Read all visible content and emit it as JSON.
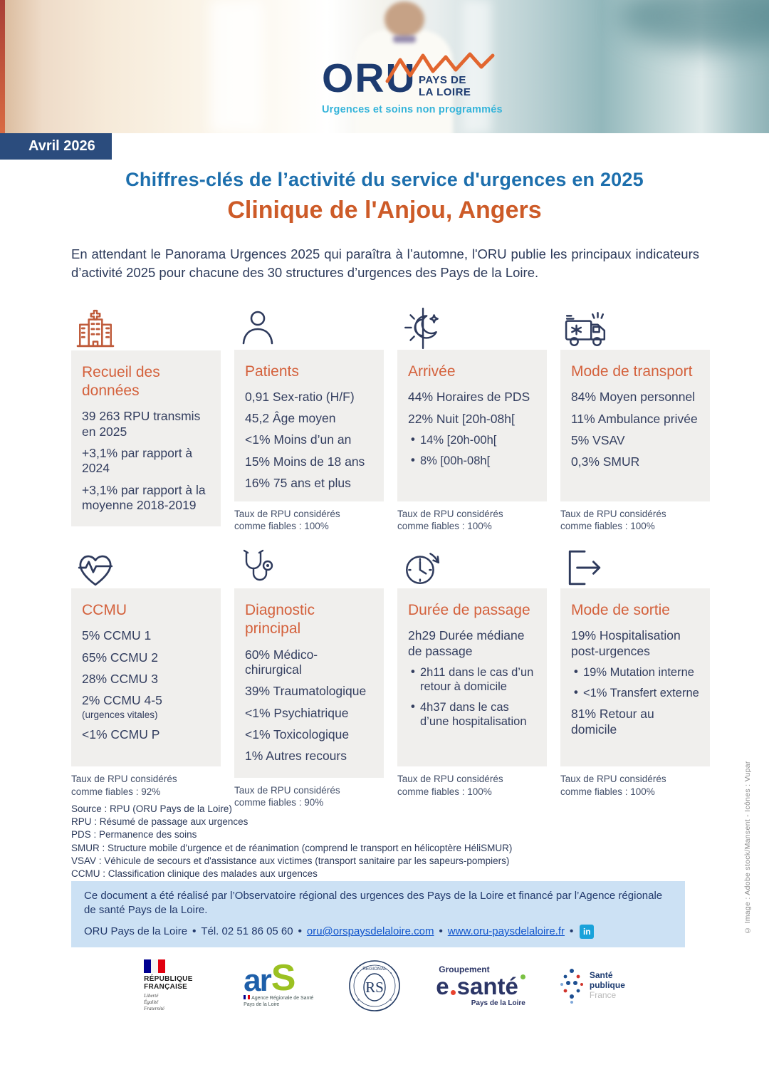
{
  "colors": {
    "navy": "#2e3a5c",
    "title_blue": "#1d6fad",
    "accent_orange": "#d4613c",
    "badge_navy": "#2b4c7d",
    "card_bg": "#f0efed",
    "contact_bg": "#cce1f4",
    "link_blue": "#1155cc",
    "tagline_blue": "#35b4da"
  },
  "logo": {
    "acronym": "ORU",
    "region_line1": "PAYS DE",
    "region_line2": "LA LOIRE",
    "tagline": "Urgences et soins non programmés"
  },
  "header": {
    "badge": "Avril 2026",
    "title": "Chiffres-clés de l’activité du service d'urgences en 2025",
    "subtitle": "Clinique de l'Anjou, Angers",
    "intro": "En attendant le Panorama Urgences 2025 qui paraîtra à l’automne, l'ORU publie les principaux indicateurs d’activité 2025 pour chacune des 30 structures d’urgences des Pays de la Loire."
  },
  "cards": [
    {
      "icon": "hospital-icon",
      "title": "Recueil des données",
      "lines": [
        {
          "text": "39 263 RPU transmis en 2025"
        },
        {
          "text": "+3,1% par rapport à 2024"
        },
        {
          "text": "+3,1% par rapport à la moyenne 2018-2019"
        }
      ],
      "footnote": ""
    },
    {
      "icon": "person-icon",
      "title": "Patients",
      "lines": [
        {
          "text": "0,91 Sex-ratio (H/F)"
        },
        {
          "text": "45,2 Âge moyen"
        },
        {
          "text": "<1% Moins d’un an"
        },
        {
          "text": "15% Moins de 18 ans"
        },
        {
          "text": "16% 75 ans et plus"
        }
      ],
      "footnote": "Taux de RPU considérés comme fiables : 100%"
    },
    {
      "icon": "day-night-icon",
      "title": "Arrivée",
      "lines": [
        {
          "text": "44% Horaires de PDS"
        },
        {
          "text": "22% Nuit [20h-08h["
        },
        {
          "text": "14% [20h-00h[",
          "bullet": true
        },
        {
          "text": "8% [00h-08h[",
          "bullet": true
        }
      ],
      "footnote": "Taux de RPU considérés comme fiables : 100%"
    },
    {
      "icon": "ambulance-icon",
      "title": "Mode de transport",
      "lines": [
        {
          "text": "84% Moyen personnel"
        },
        {
          "text": "11% Ambulance privée"
        },
        {
          "text": "5% VSAV"
        },
        {
          "text": "0,3% SMUR"
        }
      ],
      "footnote": "Taux de RPU considérés comme fiables : 100%"
    },
    {
      "icon": "heart-ecg-icon",
      "title": "CCMU",
      "lines": [
        {
          "text": "5% CCMU 1"
        },
        {
          "text": "65% CCMU 2"
        },
        {
          "text": "28% CCMU 3"
        },
        {
          "text": "2% CCMU 4-5",
          "note": "(urgences vitales)"
        },
        {
          "text": "<1% CCMU P"
        }
      ],
      "footnote": "Taux de RPU considérés comme fiables : 92%"
    },
    {
      "icon": "stethoscope-icon",
      "title": "Diagnostic principal",
      "lines": [
        {
          "text": "60% Médico-chirurgical"
        },
        {
          "text": "39% Traumatologique"
        },
        {
          "text": "<1% Psychiatrique"
        },
        {
          "text": "<1% Toxicologique"
        },
        {
          "text": "1% Autres recours"
        }
      ],
      "footnote": "Taux de RPU considérés comme fiables : 90%"
    },
    {
      "icon": "clock-icon",
      "title": "Durée de passage",
      "lines": [
        {
          "text": "2h29 Durée médiane de passage"
        },
        {
          "text": "2h11 dans le cas d’un retour à domicile",
          "bullet": true
        },
        {
          "text": "4h37 dans le cas d’une hospitalisation",
          "bullet": true
        }
      ],
      "footnote": "Taux de RPU considérés comme fiables : 100%"
    },
    {
      "icon": "exit-icon",
      "title": "Mode de sortie",
      "lines": [
        {
          "text": "19% Hospitalisation post-urgences"
        },
        {
          "text": "19% Mutation interne",
          "bullet": true
        },
        {
          "text": "<1% Transfert externe",
          "bullet": true
        },
        {
          "text": "81% Retour au domicile"
        }
      ],
      "footnote": "Taux de RPU considérés comme fiables : 100%"
    }
  ],
  "glossary": {
    "lines": [
      "Source : RPU (ORU Pays de la Loire)",
      "RPU : Résumé de passage aux urgences",
      "PDS : Permanence des soins",
      "SMUR : Structure mobile d'urgence et de réanimation (comprend le transport en hélicoptère HéliSMUR)",
      "VSAV : Véhicule de secours et d'assistance aux victimes (transport sanitaire par les sapeurs-pompiers)",
      "CCMU : Classification clinique des malades aux urgences"
    ]
  },
  "contact": {
    "line1": "Ce document a été réalisé par l’Observatoire régional des urgences des Pays de la Loire et financé par l’Agence régionale de santé Pays de la Loire.",
    "org": "ORU Pays de la Loire",
    "phone": "Tél. 02 51 86 05 60",
    "email": "oru@orspaysdelaloire.com",
    "website": "www.oru-paysdelaloire.fr"
  },
  "credit": "© Image : Adobe stock/Mansent - Icônes : Vupar",
  "partners": {
    "republique": {
      "title_line1": "RÉPUBLIQUE",
      "title_line2": "FRANÇAISE",
      "motto_line1": "Liberté",
      "motto_line2": "Égalité",
      "motto_line3": "Fraternité"
    },
    "ars": {
      "ar": "ar",
      "s": "S",
      "sub1": "Agence Régionale de Santé",
      "sub2": "Pays de la Loire"
    },
    "ors": {
      "ring_top": "RÉGIONAL",
      "monogram": "RS"
    },
    "esante": {
      "top": "Groupement",
      "main_e": "e",
      "main_rest": "santé",
      "sub": "Pays de la Loire"
    },
    "spf": {
      "line1": "Santé",
      "line2": "publique",
      "line3": "France"
    }
  }
}
